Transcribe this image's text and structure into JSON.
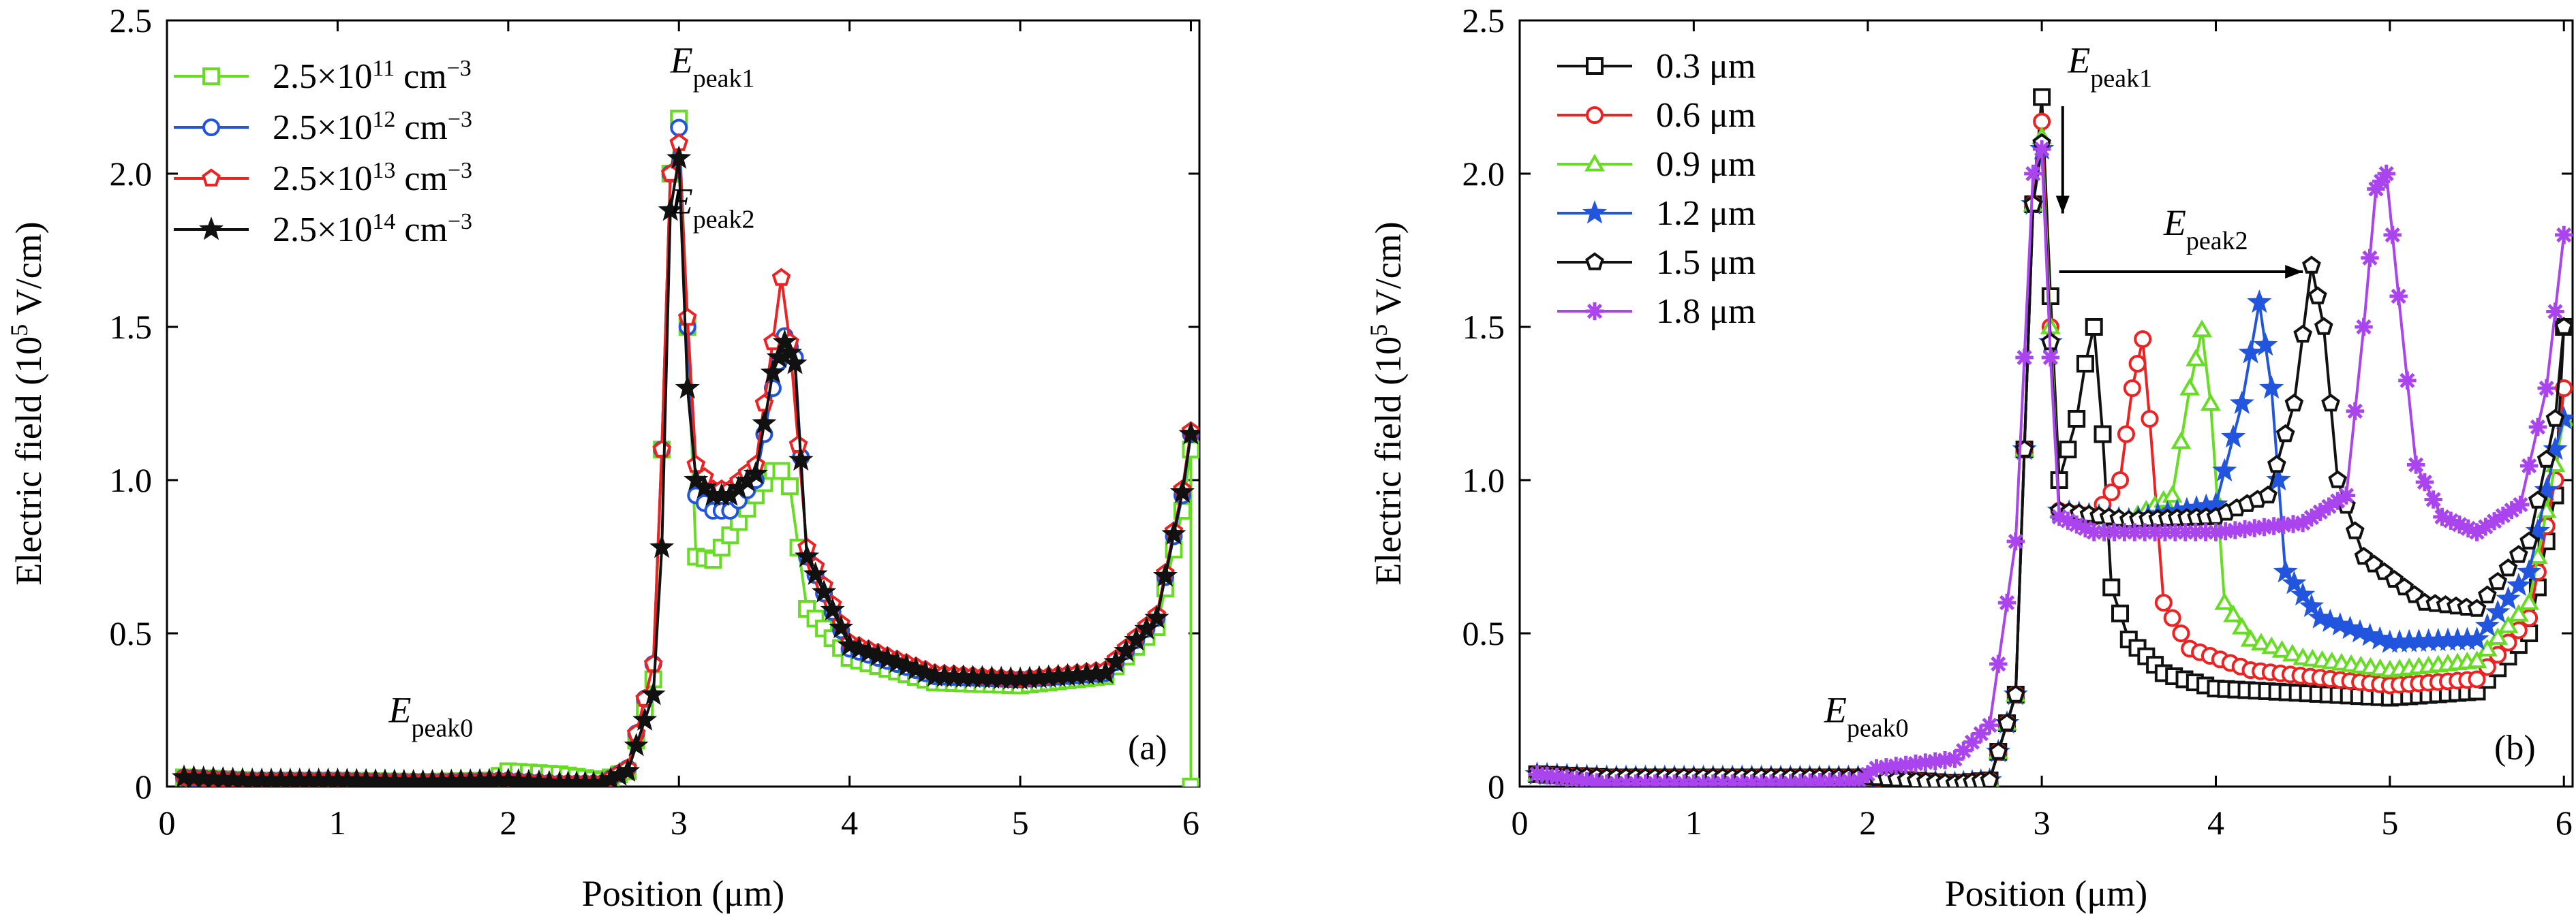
{
  "chart_data": [
    {
      "type": "line",
      "panel_label": "(a)",
      "xlabel": "Position (μm)",
      "ylabel": "Electric field (10⁵ V/cm)",
      "xlim": [
        0,
        6.05
      ],
      "ylim": [
        0,
        2.5
      ],
      "xticks": [
        0,
        1,
        2,
        3,
        4,
        5,
        6
      ],
      "yticks": [
        0,
        0.5,
        1.0,
        1.5,
        2.0,
        2.5
      ],
      "ytick_labels": [
        "0",
        "0.5",
        "1.0",
        "1.5",
        "2.0",
        "2.5"
      ],
      "legend_position": "top-left",
      "annotations": [
        {
          "base": "E",
          "sub": "peak1",
          "at": [
            2.95,
            2.33
          ]
        },
        {
          "base": "E",
          "sub": "peak2",
          "at": [
            2.95,
            1.87
          ]
        },
        {
          "base": "E",
          "sub": "peak0",
          "at": [
            1.3,
            0.21
          ]
        }
      ],
      "series": [
        {
          "name": "2.5×10¹¹ cm⁻³",
          "color": "#66dd22",
          "marker": "square",
          "x": [
            0.1,
            0.5,
            1,
            1.5,
            1.9,
            2,
            2.3,
            2.55,
            2.7,
            2.85,
            2.9,
            2.95,
            3,
            3.05,
            3.1,
            3.2,
            3.3,
            3.45,
            3.55,
            3.6,
            3.65,
            3.75,
            4,
            4.5,
            5,
            5.5,
            5.8,
            5.95,
            6,
            6
          ],
          "y": [
            0.03,
            0.02,
            0.02,
            0.015,
            0.02,
            0.05,
            0.04,
            0.02,
            0.05,
            0.35,
            1.1,
            2.0,
            2.18,
            1.5,
            0.75,
            0.74,
            0.82,
            0.95,
            1.03,
            1.03,
            0.98,
            0.58,
            0.42,
            0.34,
            0.33,
            0.36,
            0.52,
            0.9,
            1.1,
            0
          ]
        },
        {
          "name": "2.5×10¹² cm⁻³",
          "color": "#2255dd",
          "marker": "circle",
          "x": [
            0.1,
            0.5,
            1,
            1.5,
            2,
            2.3,
            2.55,
            2.7,
            2.85,
            2.9,
            2.95,
            3,
            3.05,
            3.1,
            3.2,
            3.3,
            3.45,
            3.55,
            3.62,
            3.68,
            3.75,
            4,
            4.5,
            5,
            5.5,
            5.8,
            5.95,
            6
          ],
          "y": [
            0.03,
            0.02,
            0.02,
            0.015,
            0.02,
            0.01,
            0.01,
            0.06,
            0.4,
            1.1,
            2.0,
            2.15,
            1.5,
            0.95,
            0.9,
            0.9,
            1.0,
            1.3,
            1.47,
            1.4,
            0.75,
            0.45,
            0.36,
            0.35,
            0.37,
            0.55,
            0.95,
            1.15
          ]
        },
        {
          "name": "2.5×10¹³ cm⁻³",
          "color": "#ee2222",
          "marker": "pentagon",
          "x": [
            0.1,
            0.5,
            1,
            1.5,
            2,
            2.3,
            2.55,
            2.7,
            2.85,
            2.9,
            2.95,
            3,
            3.05,
            3.1,
            3.2,
            3.3,
            3.45,
            3.55,
            3.6,
            3.65,
            3.75,
            4,
            4.5,
            5,
            5.5,
            5.8,
            5.95,
            6
          ],
          "y": [
            0.03,
            0.02,
            0.02,
            0.015,
            0.02,
            0.01,
            0.01,
            0.06,
            0.4,
            1.1,
            2.0,
            2.1,
            1.53,
            1.05,
            0.97,
            0.97,
            1.05,
            1.45,
            1.66,
            1.45,
            0.78,
            0.47,
            0.37,
            0.35,
            0.38,
            0.56,
            0.97,
            1.16
          ]
        },
        {
          "name": "2.5×10¹⁴ cm⁻³",
          "color": "#111111",
          "marker": "star",
          "x": [
            0.1,
            0.5,
            1,
            1.5,
            2,
            2.3,
            2.55,
            2.7,
            2.85,
            2.9,
            2.95,
            3,
            3.05,
            3.1,
            3.2,
            3.3,
            3.45,
            3.55,
            3.62,
            3.68,
            3.75,
            4,
            4.5,
            5,
            5.5,
            5.8,
            5.95,
            6
          ],
          "y": [
            0.03,
            0.02,
            0.02,
            0.015,
            0.02,
            0.01,
            0.01,
            0.05,
            0.3,
            0.78,
            1.88,
            2.05,
            1.3,
            1.0,
            0.95,
            0.95,
            1.02,
            1.35,
            1.45,
            1.38,
            0.75,
            0.46,
            0.36,
            0.35,
            0.37,
            0.55,
            0.96,
            1.15
          ]
        }
      ]
    },
    {
      "type": "line",
      "panel_label": "(b)",
      "xlabel": "Position (μm)",
      "ylabel": "Electric field (10⁵ V/cm)",
      "xlim": [
        0,
        6.05
      ],
      "ylim": [
        0,
        2.5
      ],
      "xticks": [
        0,
        1,
        2,
        3,
        4,
        5,
        6
      ],
      "yticks": [
        0,
        0.5,
        1.0,
        1.5,
        2.0,
        2.5
      ],
      "ytick_labels": [
        "0",
        "0.5",
        "1.0",
        "1.5",
        "2.0",
        "2.5"
      ],
      "legend_position": "top-left",
      "annotations": [
        {
          "base": "E",
          "sub": "peak1",
          "at": [
            3.15,
            2.33
          ]
        },
        {
          "base": "E",
          "sub": "peak2",
          "at": [
            3.7,
            1.8
          ]
        },
        {
          "base": "E",
          "sub": "peak0",
          "at": [
            1.75,
            0.21
          ]
        }
      ],
      "arrows": [
        {
          "from": [
            3.12,
            2.22
          ],
          "to": [
            3.12,
            1.87
          ]
        },
        {
          "from": [
            3.1,
            1.68
          ],
          "to": [
            4.5,
            1.68
          ]
        }
      ],
      "series": [
        {
          "name": "0.3 μm",
          "color": "#111111",
          "marker": "square",
          "x": [
            0.1,
            0.5,
            1,
            1.5,
            2,
            2.5,
            2.7,
            2.85,
            2.95,
            3,
            3.05,
            3.1,
            3.15,
            3.2,
            3.25,
            3.3,
            3.35,
            3.4,
            3.5,
            3.7,
            4,
            5,
            5.5,
            5.8,
            5.95,
            6
          ],
          "y": [
            0.04,
            0.03,
            0.03,
            0.03,
            0.03,
            0.01,
            0.02,
            0.3,
            1.9,
            2.25,
            1.6,
            1.0,
            1.1,
            1.2,
            1.38,
            1.5,
            1.15,
            0.65,
            0.48,
            0.37,
            0.32,
            0.29,
            0.31,
            0.5,
            0.95,
            1.5
          ]
        },
        {
          "name": "0.6 μm",
          "color": "#ee2222",
          "marker": "circle",
          "x": [
            0.1,
            0.5,
            1,
            1.5,
            2,
            2.5,
            2.7,
            2.85,
            2.95,
            3,
            3.05,
            3.1,
            3.3,
            3.45,
            3.52,
            3.58,
            3.62,
            3.7,
            3.85,
            4.2,
            5,
            5.5,
            5.8,
            5.95,
            6
          ],
          "y": [
            0.04,
            0.03,
            0.03,
            0.03,
            0.03,
            0.01,
            0.02,
            0.3,
            1.9,
            2.17,
            1.5,
            0.9,
            0.88,
            1.0,
            1.3,
            1.46,
            1.2,
            0.6,
            0.45,
            0.38,
            0.33,
            0.35,
            0.55,
            1.0,
            1.3
          ]
        },
        {
          "name": "0.9 μm",
          "color": "#66dd22",
          "marker": "triangle",
          "x": [
            0.1,
            0.5,
            1,
            1.5,
            2,
            2.5,
            2.7,
            2.85,
            2.95,
            3,
            3.05,
            3.1,
            3.5,
            3.75,
            3.85,
            3.92,
            3.97,
            4.05,
            4.2,
            4.5,
            5,
            5.5,
            5.8,
            5.95,
            6
          ],
          "y": [
            0.04,
            0.03,
            0.03,
            0.03,
            0.03,
            0.01,
            0.02,
            0.3,
            1.9,
            2.12,
            1.5,
            0.9,
            0.87,
            0.95,
            1.3,
            1.49,
            1.25,
            0.6,
            0.48,
            0.42,
            0.38,
            0.41,
            0.6,
            1.05,
            1.2
          ]
        },
        {
          "name": "1.2 μm",
          "color": "#2255dd",
          "marker": "star",
          "x": [
            0.1,
            0.5,
            1,
            1.5,
            2,
            2.5,
            2.7,
            2.85,
            2.95,
            3,
            3.05,
            3.1,
            3.5,
            4.0,
            4.15,
            4.25,
            4.32,
            4.4,
            4.6,
            5,
            5.5,
            5.8,
            5.95,
            6
          ],
          "y": [
            0.04,
            0.03,
            0.03,
            0.03,
            0.03,
            0.01,
            0.02,
            0.3,
            1.9,
            2.08,
            1.45,
            0.9,
            0.87,
            0.92,
            1.25,
            1.58,
            1.3,
            0.7,
            0.55,
            0.47,
            0.48,
            0.7,
            1.1,
            1.2
          ]
        },
        {
          "name": "1.5 μm",
          "color": "#111111",
          "marker": "pentagon",
          "x": [
            0.1,
            0.5,
            1,
            1.5,
            2,
            2.5,
            2.7,
            2.85,
            2.95,
            3,
            3.05,
            3.1,
            3.5,
            4.0,
            4.3,
            4.45,
            4.55,
            4.62,
            4.7,
            4.85,
            5.2,
            5.5,
            5.8,
            5.95,
            6
          ],
          "y": [
            0.04,
            0.03,
            0.03,
            0.03,
            0.03,
            0.01,
            0.02,
            0.3,
            1.9,
            2.1,
            1.45,
            0.9,
            0.87,
            0.88,
            0.95,
            1.25,
            1.7,
            1.5,
            1.0,
            0.75,
            0.6,
            0.58,
            0.8,
            1.2,
            1.5
          ]
        },
        {
          "name": "1.8 μm",
          "color": "#aa44ee",
          "marker": "asterisk",
          "x": [
            0.1,
            0.5,
            1,
            1.5,
            1.95,
            2.05,
            2.5,
            2.7,
            2.85,
            2.95,
            3,
            3.05,
            3.1,
            3.3,
            4.0,
            4.5,
            4.75,
            4.85,
            4.92,
            4.98,
            5.05,
            5.15,
            5.3,
            5.5,
            5.75,
            5.9,
            6
          ],
          "y": [
            0.04,
            0.01,
            0.01,
            0.01,
            0.02,
            0.06,
            0.09,
            0.2,
            0.8,
            2.0,
            2.08,
            1.4,
            0.88,
            0.83,
            0.83,
            0.86,
            0.95,
            1.5,
            1.95,
            2.0,
            1.6,
            1.05,
            0.88,
            0.83,
            0.92,
            1.3,
            1.8
          ]
        }
      ]
    }
  ]
}
